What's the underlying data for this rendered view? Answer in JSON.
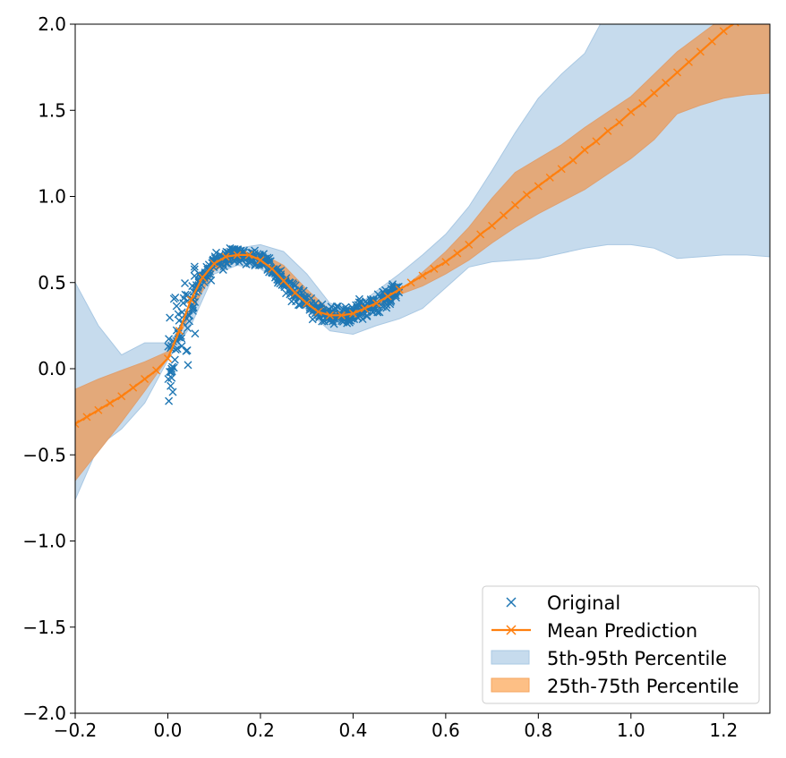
{
  "chart_data": {
    "type": "line",
    "title": "",
    "xlabel": "",
    "ylabel": "",
    "xlim": [
      -0.2,
      1.3
    ],
    "ylim": [
      -2.0,
      2.0
    ],
    "x_ticks": [
      -0.2,
      0.0,
      0.2,
      0.4,
      0.6,
      0.8,
      1.0,
      1.2
    ],
    "y_ticks": [
      -2.0,
      -1.5,
      -1.0,
      -0.5,
      0.0,
      0.5,
      1.0,
      1.5,
      2.0
    ],
    "x_tick_labels": [
      "−0.2",
      "0.0",
      "0.2",
      "0.4",
      "0.6",
      "0.8",
      "1.0",
      "1.2"
    ],
    "y_tick_labels": [
      "−2.0",
      "−1.5",
      "−1.0",
      "−0.5",
      "0.0",
      "0.5",
      "1.0",
      "1.5",
      "2.0"
    ],
    "grid": false,
    "legend_position": "bottom-right",
    "colors": {
      "original": "#1f77b4",
      "mean": "#ff7f0e",
      "band_outer": "#c6dbed",
      "band_inner": "#e3a97a"
    },
    "legend": [
      {
        "label": "Original",
        "kind": "marker-x",
        "color": "#1f77b4"
      },
      {
        "label": "Mean Prediction",
        "kind": "line-x",
        "color": "#ff7f0e"
      },
      {
        "label": "5th-95th Percentile",
        "kind": "patch",
        "color": "#c6dbed"
      },
      {
        "label": "25th-75th Percentile",
        "kind": "patch",
        "color": "#fdbf85"
      }
    ],
    "series": [
      {
        "name": "5th-95th Percentile",
        "kind": "band",
        "x": [
          -0.2,
          -0.15,
          -0.1,
          -0.05,
          0.0,
          0.05,
          0.1,
          0.15,
          0.2,
          0.25,
          0.3,
          0.35,
          0.4,
          0.45,
          0.5,
          0.55,
          0.6,
          0.65,
          0.7,
          0.75,
          0.8,
          0.85,
          0.9,
          0.95,
          1.0,
          1.05,
          1.1,
          1.15,
          1.2,
          1.25,
          1.3
        ],
        "lower": [
          -0.76,
          -0.45,
          -0.35,
          -0.2,
          0.05,
          0.25,
          0.55,
          0.6,
          0.58,
          0.48,
          0.34,
          0.22,
          0.2,
          0.25,
          0.29,
          0.35,
          0.47,
          0.59,
          0.62,
          0.63,
          0.64,
          0.67,
          0.7,
          0.72,
          0.72,
          0.7,
          0.64,
          0.65,
          0.66,
          0.66,
          0.65
        ],
        "upper": [
          0.5,
          0.25,
          0.08,
          0.15,
          0.15,
          0.3,
          0.6,
          0.7,
          0.72,
          0.68,
          0.55,
          0.38,
          0.35,
          0.45,
          0.55,
          0.66,
          0.78,
          0.94,
          1.15,
          1.37,
          1.57,
          1.71,
          1.83,
          2.08,
          2.32,
          2.5,
          2.5,
          2.5,
          2.5,
          2.5,
          2.5
        ]
      },
      {
        "name": "25th-75th Percentile",
        "kind": "band",
        "x": [
          -0.2,
          -0.15,
          -0.1,
          -0.05,
          0.0,
          0.05,
          0.1,
          0.15,
          0.2,
          0.25,
          0.3,
          0.35,
          0.4,
          0.45,
          0.5,
          0.55,
          0.6,
          0.65,
          0.7,
          0.75,
          0.8,
          0.85,
          0.9,
          0.95,
          1.0,
          1.05,
          1.1,
          1.15,
          1.2,
          1.25,
          1.3
        ],
        "lower": [
          -0.65,
          -0.48,
          -0.31,
          -0.13,
          0.06,
          0.33,
          0.57,
          0.63,
          0.63,
          0.55,
          0.41,
          0.3,
          0.3,
          0.35,
          0.43,
          0.48,
          0.55,
          0.63,
          0.73,
          0.82,
          0.9,
          0.97,
          1.04,
          1.13,
          1.22,
          1.33,
          1.48,
          1.53,
          1.57,
          1.59,
          1.6
        ],
        "upper": [
          -0.12,
          -0.06,
          -0.01,
          0.04,
          0.1,
          0.36,
          0.59,
          0.67,
          0.67,
          0.6,
          0.46,
          0.34,
          0.32,
          0.37,
          0.45,
          0.56,
          0.68,
          0.82,
          0.99,
          1.14,
          1.22,
          1.3,
          1.4,
          1.49,
          1.58,
          1.71,
          1.84,
          1.94,
          2.04,
          2.1,
          2.14
        ]
      },
      {
        "name": "Mean Prediction",
        "kind": "line",
        "x": [
          -0.2,
          -0.175,
          -0.15,
          -0.125,
          -0.1,
          -0.075,
          -0.05,
          -0.025,
          0.0,
          0.025,
          0.05,
          0.075,
          0.1,
          0.125,
          0.15,
          0.175,
          0.2,
          0.225,
          0.25,
          0.275,
          0.3,
          0.325,
          0.35,
          0.375,
          0.4,
          0.425,
          0.45,
          0.475,
          0.5,
          0.525,
          0.55,
          0.575,
          0.6,
          0.625,
          0.65,
          0.675,
          0.7,
          0.725,
          0.75,
          0.775,
          0.8,
          0.825,
          0.85,
          0.875,
          0.9,
          0.925,
          0.95,
          0.975,
          1.0,
          1.025,
          1.05,
          1.075,
          1.1,
          1.125,
          1.15,
          1.175,
          1.2,
          1.225
        ],
        "y": [
          -0.32,
          -0.28,
          -0.24,
          -0.2,
          -0.16,
          -0.11,
          -0.06,
          -0.01,
          0.06,
          0.22,
          0.4,
          0.53,
          0.61,
          0.65,
          0.66,
          0.66,
          0.63,
          0.58,
          0.51,
          0.44,
          0.38,
          0.33,
          0.31,
          0.31,
          0.32,
          0.35,
          0.38,
          0.42,
          0.46,
          0.5,
          0.54,
          0.58,
          0.62,
          0.67,
          0.72,
          0.78,
          0.83,
          0.89,
          0.95,
          1.01,
          1.06,
          1.11,
          1.16,
          1.21,
          1.27,
          1.32,
          1.38,
          1.43,
          1.49,
          1.54,
          1.6,
          1.66,
          1.72,
          1.78,
          1.84,
          1.9,
          1.96,
          2.01
        ]
      },
      {
        "name": "Original",
        "kind": "scatter",
        "generator": "noisy samples around mean prediction for x in [0.0, 0.5]",
        "x_range": [
          0.0,
          0.5
        ],
        "count": 520
      }
    ]
  }
}
